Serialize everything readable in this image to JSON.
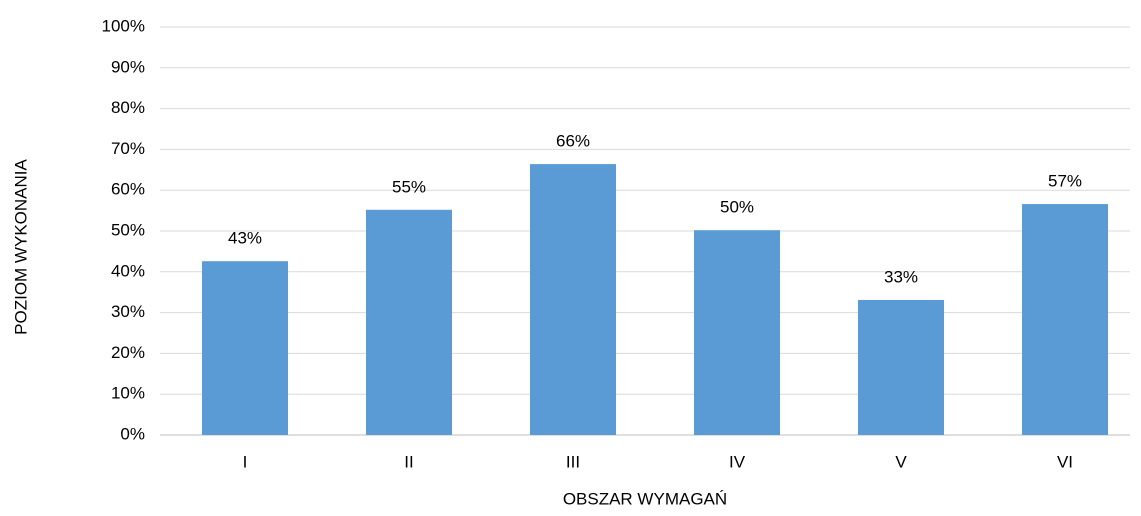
{
  "chart_data": {
    "type": "bar",
    "x_label": "OBSZAR WYMAGAŃ",
    "y_label": "POZIOM WYKONANIA",
    "categories": [
      "I",
      "II",
      "III",
      "IV",
      "V",
      "VI"
    ],
    "values": [
      42.6,
      55.2,
      66.4,
      50.2,
      33.1,
      56.6
    ],
    "value_labels": [
      "43%",
      "55%",
      "66%",
      "50%",
      "33%",
      "57%"
    ],
    "color": "#5b9bd5",
    "ylim": [
      0,
      100
    ],
    "yticks": [
      {
        "value": 0,
        "label": "0%"
      },
      {
        "value": 10,
        "label": "10%"
      },
      {
        "value": 20,
        "label": "20%"
      },
      {
        "value": 30,
        "label": "30%"
      },
      {
        "value": 40,
        "label": "40%"
      },
      {
        "value": 50,
        "label": "50%"
      },
      {
        "value": 60,
        "label": "60%"
      },
      {
        "value": 70,
        "label": "70%"
      },
      {
        "value": 80,
        "label": "80%"
      },
      {
        "value": 90,
        "label": "90%"
      },
      {
        "value": 100,
        "label": "100%"
      }
    ],
    "grid": true
  }
}
